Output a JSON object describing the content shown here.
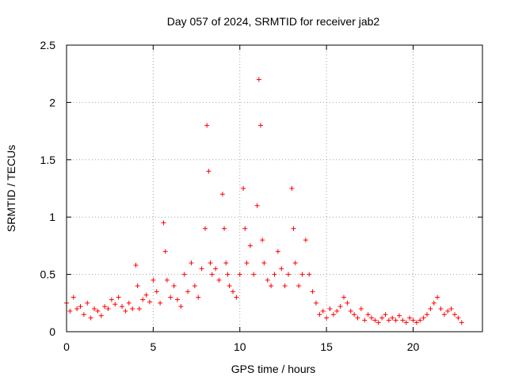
{
  "chart_data": {
    "type": "scatter",
    "title": "Day 057 of 2024, SRMTID for receiver jab2",
    "xlabel": "GPS time / hours",
    "ylabel": "SRMTID / TECUs",
    "xlim": [
      0,
      24
    ],
    "ylim": [
      0,
      2.5
    ],
    "x_ticks": [
      0,
      5,
      10,
      15,
      20
    ],
    "x_tick_labels": [
      "0",
      "5",
      "10",
      "15",
      "20"
    ],
    "y_ticks": [
      0,
      0.5,
      1,
      1.5,
      2,
      2.5
    ],
    "y_tick_labels": [
      "0",
      "0.5",
      "1",
      "1.5",
      "2",
      "2.5"
    ],
    "grid": true,
    "marker": "+",
    "series": [
      {
        "name": "jab2",
        "color": "#ff0000",
        "x": [
          0.0,
          0.2,
          0.4,
          0.6,
          0.8,
          1.0,
          1.2,
          1.4,
          1.6,
          1.8,
          2.0,
          2.2,
          2.4,
          2.6,
          2.8,
          3.0,
          3.2,
          3.4,
          3.6,
          3.8,
          4.0,
          4.1,
          4.2,
          4.4,
          4.6,
          4.8,
          5.0,
          5.2,
          5.4,
          5.6,
          5.7,
          5.8,
          6.0,
          6.2,
          6.4,
          6.6,
          6.8,
          7.0,
          7.2,
          7.4,
          7.6,
          7.8,
          8.0,
          8.1,
          8.2,
          8.3,
          8.4,
          8.6,
          8.8,
          9.0,
          9.1,
          9.2,
          9.3,
          9.4,
          9.6,
          9.8,
          10.0,
          10.2,
          10.3,
          10.4,
          10.6,
          10.8,
          11.0,
          11.1,
          11.2,
          11.3,
          11.4,
          11.6,
          11.8,
          12.0,
          12.2,
          12.4,
          12.6,
          12.8,
          13.0,
          13.1,
          13.2,
          13.4,
          13.6,
          13.8,
          14.0,
          14.2,
          14.4,
          14.6,
          14.8,
          15.0,
          15.2,
          15.4,
          15.6,
          15.8,
          16.0,
          16.2,
          16.4,
          16.6,
          16.8,
          17.0,
          17.2,
          17.4,
          17.6,
          17.8,
          18.0,
          18.2,
          18.4,
          18.6,
          18.8,
          19.0,
          19.2,
          19.4,
          19.6,
          19.8,
          20.0,
          20.2,
          20.4,
          20.6,
          20.8,
          21.0,
          21.2,
          21.4,
          21.6,
          21.8,
          22.0,
          22.2,
          22.4,
          22.6,
          22.8
        ],
        "y": [
          0.25,
          0.18,
          0.3,
          0.2,
          0.22,
          0.15,
          0.25,
          0.12,
          0.2,
          0.18,
          0.14,
          0.22,
          0.2,
          0.28,
          0.24,
          0.3,
          0.22,
          0.18,
          0.25,
          0.2,
          0.58,
          0.4,
          0.2,
          0.28,
          0.32,
          0.26,
          0.45,
          0.35,
          0.25,
          0.95,
          0.7,
          0.45,
          0.3,
          0.4,
          0.28,
          0.22,
          0.5,
          0.35,
          0.6,
          0.4,
          0.3,
          0.55,
          0.9,
          1.8,
          1.4,
          0.6,
          0.5,
          0.55,
          0.45,
          1.2,
          0.9,
          0.6,
          0.5,
          0.4,
          0.35,
          0.3,
          0.5,
          1.25,
          0.9,
          0.6,
          0.75,
          0.5,
          1.1,
          2.2,
          1.8,
          0.8,
          0.6,
          0.45,
          0.4,
          0.5,
          0.7,
          0.55,
          0.4,
          0.5,
          1.25,
          0.9,
          0.6,
          0.4,
          0.5,
          0.8,
          0.5,
          0.35,
          0.25,
          0.15,
          0.18,
          0.12,
          0.2,
          0.15,
          0.18,
          0.22,
          0.3,
          0.25,
          0.18,
          0.15,
          0.12,
          0.2,
          0.1,
          0.15,
          0.12,
          0.1,
          0.08,
          0.12,
          0.15,
          0.1,
          0.12,
          0.1,
          0.14,
          0.1,
          0.08,
          0.12,
          0.1,
          0.08,
          0.1,
          0.12,
          0.15,
          0.2,
          0.25,
          0.3,
          0.2,
          0.15,
          0.18,
          0.2,
          0.15,
          0.12,
          0.08
        ]
      }
    ]
  }
}
